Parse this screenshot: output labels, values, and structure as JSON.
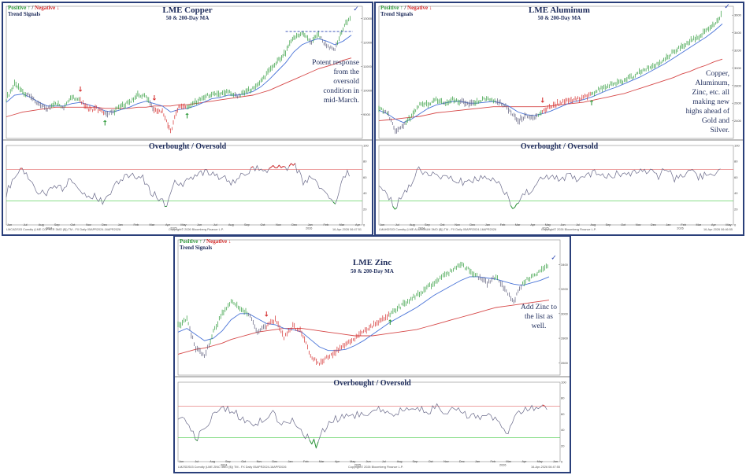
{
  "colors": {
    "positive": "#2e9a3a",
    "negative": "#d42a2a",
    "neutral": "#5a5a78",
    "ma50": "#4a74d8",
    "ma200": "#d64848",
    "overbought_line": "#e26b6b",
    "oversold_line": "#43c943",
    "frame": "#2a3f7a",
    "text": "#1f2d5c"
  },
  "legend": {
    "positive": "Positive ↑",
    "separator": " / ",
    "negative": "Negative ↓",
    "subtitle": "Trend Signals"
  },
  "panels": [
    {
      "id": "copper",
      "title": "LME Copper",
      "subtitle": "50 & 200-Day MA",
      "osc_title": "Overbought / Oversold",
      "annotation": "Potent response from the oversold condition in mid-March.",
      "months": [
        "Jun",
        "Jul",
        "Aug",
        "Sep",
        "Oct",
        "Nov",
        "Dec",
        "Jan",
        "Feb",
        "Mar",
        "Apr",
        "May",
        "Jun",
        "Jul",
        "Aug",
        "Sep",
        "Oct",
        "Nov",
        "Dec",
        "Jan",
        "Feb",
        "Mar",
        "Apr"
      ],
      "year_labels": [
        "2024",
        "2025",
        "2026"
      ],
      "price_ticks": [
        "13000",
        "12000",
        "11000",
        "10000",
        "9000",
        "8000"
      ],
      "osc_ticks": [
        "100",
        "80",
        "60",
        "40",
        "20",
        "0"
      ],
      "footer_left": "LMCADS03 Comdty (LME COPPER   3MO ($)) TM - FX Daily 05APR2024-16APR2026",
      "footer_center": "Copyright© 2026 Bloomberg Finance L.P.",
      "footer_right": "16-Apr-2026 06:47:51",
      "chart_data": {
        "type": "line",
        "title": "LME Copper",
        "subtitle": "50 & 200-Day MA",
        "ylim": [
          8000,
          13500
        ],
        "series": [
          {
            "name": "Price",
            "points": [
              9650,
              10250,
              9950,
              9700,
              9400,
              9250,
              9500,
              9300,
              9700,
              9550,
              9200,
              9250,
              9000,
              9100,
              9350,
              9500,
              9800,
              9750,
              9200,
              9100,
              8300,
              9350,
              9300,
              9500,
              9700,
              9850,
              9800,
              9950,
              9750,
              9900,
              10100,
              10400,
              10800,
              11200,
              11600,
              12200,
              12400,
              12000,
              12300,
              11800,
              11700,
              12600,
              13100
            ]
          },
          {
            "name": "50-Day MA",
            "points": [
              9500,
              9800,
              9850,
              9700,
              9500,
              9350,
              9350,
              9350,
              9450,
              9500,
              9400,
              9300,
              9150,
              9100,
              9200,
              9300,
              9450,
              9550,
              9450,
              9350,
              9100,
              9200,
              9250,
              9350,
              9500,
              9650,
              9700,
              9800,
              9800,
              9850,
              9950,
              10150,
              10450,
              10800,
              11150,
              11600,
              11900,
              12050,
              12150,
              12050,
              11900,
              12050,
              12300
            ]
          },
          {
            "name": "200-Day MA",
            "points": [
              8900,
              9000,
              9100,
              9150,
              9200,
              9250,
              9300,
              9300,
              9300,
              9300,
              9300,
              9300,
              9250,
              9250,
              9250,
              9250,
              9300,
              9300,
              9350,
              9350,
              9350,
              9400,
              9400,
              9450,
              9500,
              9550,
              9600,
              9650,
              9700,
              9750,
              9800,
              9900,
              10000,
              10150,
              10300,
              10450,
              10600,
              10750,
              10900,
              11000,
              11100,
              11250,
              11350
            ]
          }
        ],
        "oscillator": {
          "overbought": 70,
          "oversold": 30,
          "values": [
            40,
            62,
            68,
            55,
            42,
            36,
            50,
            46,
            58,
            50,
            36,
            38,
            30,
            42,
            56,
            60,
            64,
            58,
            40,
            35,
            24,
            52,
            48,
            60,
            66,
            68,
            60,
            64,
            52,
            60,
            66,
            72,
            68,
            72,
            74,
            70,
            76,
            52,
            64,
            48,
            40,
            28,
            60,
            68
          ]
        },
        "signals": [
          {
            "type": "negative",
            "label": "↓",
            "index": 9
          },
          {
            "type": "positive",
            "label": "↑",
            "index": 12
          },
          {
            "type": "negative",
            "label": "↓",
            "index": 18
          },
          {
            "type": "positive",
            "label": "↑",
            "index": 22
          }
        ],
        "check_mark": "✓"
      }
    },
    {
      "id": "aluminum",
      "title": "LME Aluminum",
      "subtitle": "50 & 200-Day MA",
      "osc_title": "Overbought / Oversold",
      "annotation": "Copper, Aluminum, Zinc, etc. all making new highs ahead of Gold and Silver.",
      "months": [
        "Jun",
        "Jul",
        "Aug",
        "Sep",
        "Oct",
        "Nov",
        "Dec",
        "Jan",
        "Feb",
        "Mar",
        "Apr",
        "May",
        "Jun",
        "Jul",
        "Aug",
        "Sep",
        "Oct",
        "Nov",
        "Dec",
        "Jan",
        "Feb",
        "Mar",
        "Apr",
        "May"
      ],
      "year_labels": [
        "2024",
        "2025",
        "2026"
      ],
      "price_ticks": [
        "3600",
        "3400",
        "3200",
        "3000",
        "2800",
        "2600",
        "2400",
        "2200"
      ],
      "osc_ticks": [
        "100",
        "80",
        "60",
        "40",
        "20",
        "0"
      ],
      "footer_left": "LMAHDS03 Comdty (LME ALUMINUM   3MO ($)) TM - FX Daily 05APR2024-16APR2026",
      "footer_center": "Copyright© 2026 Bloomberg Finance L.P.",
      "footer_right": "16-Apr-2026 06:46:55",
      "chart_data": {
        "type": "line",
        "title": "LME Aluminum",
        "subtitle": "50 & 200-Day MA",
        "ylim": [
          2200,
          3700
        ],
        "series": [
          {
            "name": "Price",
            "points": [
              2550,
              2500,
              2280,
              2350,
              2450,
              2600,
              2580,
              2650,
              2600,
              2640,
              2620,
              2580,
              2620,
              2650,
              2630,
              2600,
              2520,
              2400,
              2460,
              2440,
              2500,
              2560,
              2600,
              2620,
              2640,
              2660,
              2700,
              2760,
              2800,
              2820,
              2860,
              2900,
              2960,
              3000,
              3050,
              3100,
              3180,
              3240,
              3300,
              3350,
              3420,
              3500,
              3620
            ]
          },
          {
            "name": "50-Day MA",
            "points": [
              2520,
              2480,
              2420,
              2380,
              2420,
              2480,
              2540,
              2580,
              2600,
              2620,
              2620,
              2600,
              2600,
              2610,
              2620,
              2600,
              2560,
              2500,
              2470,
              2460,
              2480,
              2510,
              2550,
              2590,
              2620,
              2640,
              2670,
              2710,
              2750,
              2780,
              2820,
              2860,
              2900,
              2950,
              3000,
              3050,
              3110,
              3170,
              3230,
              3290,
              3350,
              3420,
              3500
            ]
          },
          {
            "name": "200-Day MA",
            "points": [
              2400,
              2410,
              2420,
              2430,
              2440,
              2450,
              2470,
              2490,
              2500,
              2510,
              2520,
              2530,
              2540,
              2550,
              2560,
              2560,
              2560,
              2560,
              2560,
              2560,
              2560,
              2570,
              2580,
              2590,
              2600,
              2610,
              2630,
              2650,
              2670,
              2690,
              2710,
              2740,
              2770,
              2800,
              2830,
              2860,
              2890,
              2930,
              2960,
              3000,
              3030,
              3070,
              3100
            ]
          }
        ],
        "oscillator": {
          "overbought": 70,
          "oversold": 30,
          "values": [
            48,
            40,
            22,
            38,
            52,
            70,
            62,
            66,
            58,
            62,
            56,
            50,
            58,
            60,
            56,
            52,
            38,
            18,
            40,
            42,
            54,
            60,
            58,
            60,
            62,
            58,
            64,
            66,
            62,
            60,
            66,
            64,
            68,
            72,
            66,
            62,
            70,
            58,
            64,
            70,
            60,
            64,
            66,
            68
          ]
        },
        "signals": [
          {
            "type": "negative",
            "label": "↓",
            "index": 20
          },
          {
            "type": "positive",
            "label": "↑",
            "index": 26
          }
        ],
        "check_mark": "✓"
      }
    },
    {
      "id": "zinc",
      "title": "LME Zinc",
      "subtitle": "50 & 200-Day MA",
      "osc_title": "Overbought / Oversold",
      "annotation": "Add Zinc to the list as well.",
      "months": [
        "Jun",
        "Jul",
        "Aug",
        "Sep",
        "Oct",
        "Nov",
        "Dec",
        "Jan",
        "Feb",
        "Mar",
        "Apr",
        "May",
        "Jun",
        "Jul",
        "Aug",
        "Sep",
        "Oct",
        "Nov",
        "Dec",
        "Jan",
        "Feb",
        "Mar",
        "Apr",
        "May",
        "Jun"
      ],
      "year_labels": [
        "2024",
        "2025",
        "2026"
      ],
      "price_ticks": [
        "3600",
        "3400",
        "3200",
        "3000",
        "2800",
        "2600"
      ],
      "osc_ticks": [
        "100",
        "80",
        "60",
        "40",
        "20",
        "0"
      ],
      "footer_left": "LMZSDS03 Comdty (LME ZINC   3MO ($)) TM - FX Daily 05APR2024-16APR2026",
      "footer_center": "Copyright© 2026 Bloomberg Finance L.P.",
      "footer_right": "16-Apr-2026 06:47:55",
      "chart_data": {
        "type": "line",
        "title": "LME Zinc",
        "subtitle": "50 & 200-Day MA",
        "ylim": [
          2500,
          3600
        ],
        "series": [
          {
            "name": "Price",
            "points": [
              2900,
              2950,
              2720,
              2650,
              2850,
              3000,
              3100,
              3050,
              3000,
              2850,
              2900,
              2950,
              2800,
              2900,
              2850,
              2650,
              2600,
              2650,
              2700,
              2750,
              2800,
              2850,
              2900,
              2950,
              3000,
              3050,
              3100,
              3150,
              3200,
              3250,
              3300,
              3350,
              3400,
              3350,
              3300,
              3250,
              3300,
              3200,
              3100,
              3250,
              3300,
              3350,
              3400
            ]
          },
          {
            "name": "50-Day MA",
            "points": [
              2850,
              2880,
              2830,
              2780,
              2800,
              2860,
              2950,
              3000,
              3000,
              2960,
              2920,
              2910,
              2880,
              2870,
              2850,
              2790,
              2730,
              2700,
              2700,
              2710,
              2740,
              2780,
              2830,
              2880,
              2930,
              2970,
              3010,
              3050,
              3100,
              3150,
              3190,
              3230,
              3270,
              3300,
              3300,
              3290,
              3280,
              3260,
              3240,
              3230,
              3250,
              3270,
              3300
            ]
          },
          {
            "name": "200-Day MA",
            "points": [
              2670,
              2690,
              2710,
              2720,
              2740,
              2760,
              2790,
              2810,
              2830,
              2850,
              2860,
              2870,
              2880,
              2880,
              2880,
              2870,
              2860,
              2850,
              2840,
              2830,
              2820,
              2820,
              2820,
              2830,
              2840,
              2850,
              2860,
              2870,
              2890,
              2910,
              2930,
              2950,
              2970,
              2990,
              3010,
              3030,
              3050,
              3060,
              3070,
              3080,
              3090,
              3100,
              3110
            ]
          }
        ],
        "oscillator": {
          "overbought": 70,
          "oversold": 30,
          "values": [
            50,
            52,
            28,
            40,
            58,
            68,
            66,
            58,
            52,
            44,
            56,
            60,
            48,
            52,
            44,
            30,
            22,
            42,
            52,
            56,
            60,
            58,
            62,
            66,
            60,
            62,
            64,
            68,
            66,
            64,
            70,
            62,
            66,
            60,
            58,
            52,
            60,
            50,
            34,
            56,
            64,
            66,
            68,
            70
          ]
        },
        "signals": [
          {
            "type": "negative",
            "label": "↓",
            "index": 10
          },
          {
            "type": "positive",
            "label": "↑",
            "index": 24
          }
        ],
        "check_mark": "✓"
      }
    }
  ]
}
